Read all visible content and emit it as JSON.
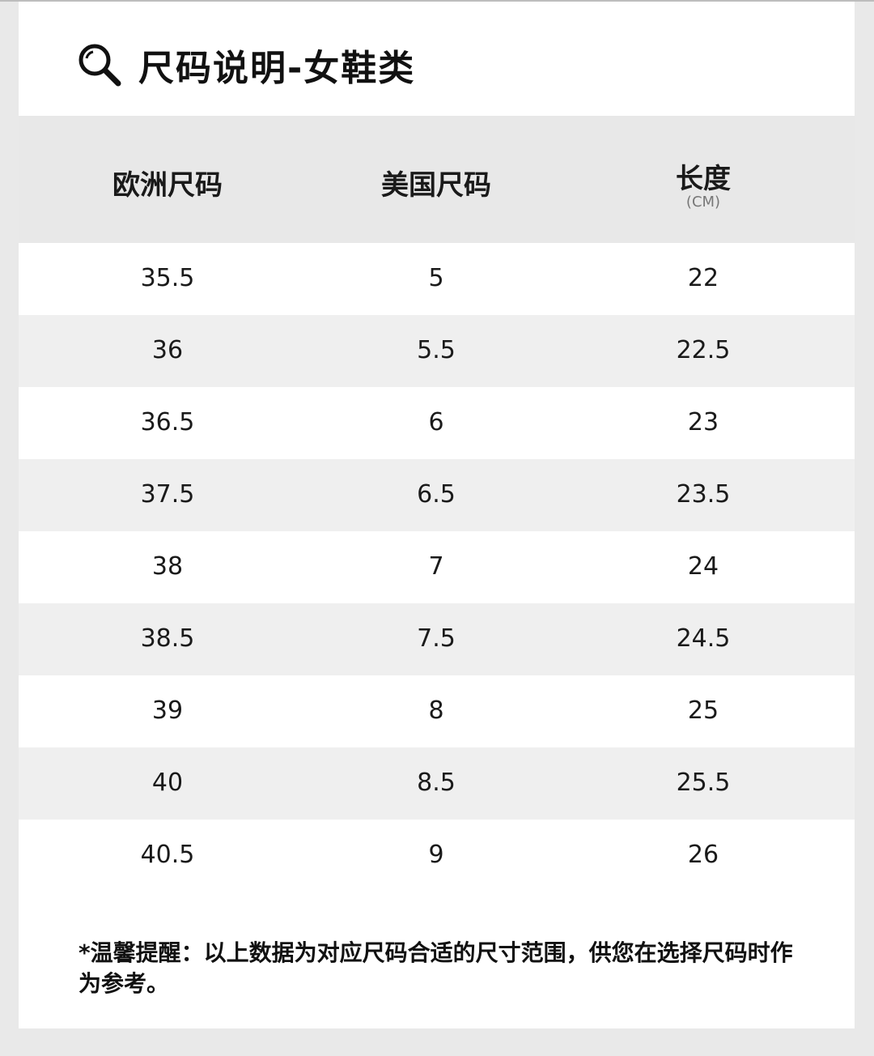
{
  "title": "尺码说明-女鞋类",
  "title_icon": "search-icon",
  "table": {
    "headers": [
      {
        "label": "欧洲尺码",
        "sub": ""
      },
      {
        "label": "美国尺码",
        "sub": ""
      },
      {
        "label": "长度",
        "sub": "(CM)"
      }
    ],
    "rows": [
      [
        "35.5",
        "5",
        "22"
      ],
      [
        "36",
        "5.5",
        "22.5"
      ],
      [
        "36.5",
        "6",
        "23"
      ],
      [
        "37.5",
        "6.5",
        "23.5"
      ],
      [
        "38",
        "7",
        "24"
      ],
      [
        "38.5",
        "7.5",
        "24.5"
      ],
      [
        "39",
        "8",
        "25"
      ],
      [
        "40",
        "8.5",
        "25.5"
      ],
      [
        "40.5",
        "9",
        "26"
      ]
    ]
  },
  "note": "*温馨提醒：以上数据为对应尺码合适的尺寸范围，供您在选择尺码时作为参考。"
}
